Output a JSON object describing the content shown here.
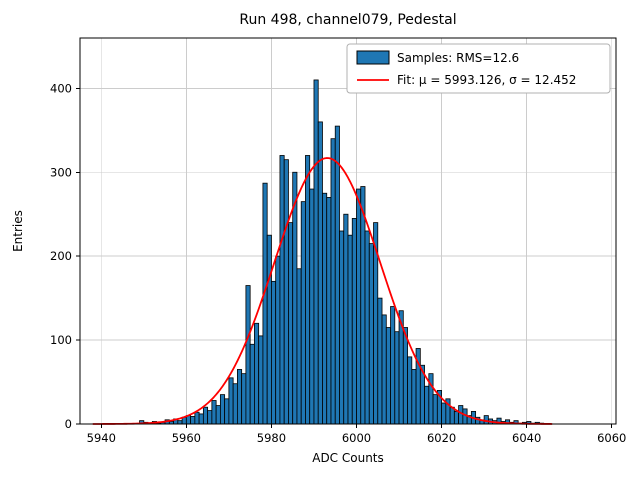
{
  "title": "Run 498, channel079, Pedestal",
  "chart_data": {
    "type": "bar",
    "subtype": "histogram-with-gaussian-fit",
    "title": "Run 498, channel079, Pedestal",
    "xlabel": "ADC Counts",
    "ylabel": "Entries",
    "xlim": [
      5935,
      6061
    ],
    "ylim": [
      0,
      460
    ],
    "xticks": [
      5940,
      5960,
      5980,
      6000,
      6020,
      6040,
      6060
    ],
    "yticks": [
      0,
      100,
      200,
      300,
      400
    ],
    "grid": true,
    "legend_position": "upper right",
    "colors": {
      "bar_fill": "#1f77b4",
      "bar_edge": "#000000",
      "fit_line": "#ff0000",
      "grid": "#cccccc",
      "legend_edge": "#b0b0b0"
    },
    "legend": [
      {
        "swatch": "patch",
        "label": "Samples: RMS=12.6"
      },
      {
        "swatch": "line",
        "label": "Fit: μ = 5993.126, σ = 12.452"
      }
    ],
    "histogram": {
      "bin_start": 5949,
      "bin_width": 1,
      "counts": [
        4,
        2,
        0,
        3,
        1,
        2,
        5,
        3,
        6,
        4,
        8,
        10,
        9,
        14,
        12,
        20,
        16,
        28,
        22,
        35,
        30,
        55,
        48,
        65,
        60,
        165,
        95,
        120,
        105,
        287,
        225,
        170,
        200,
        320,
        315,
        240,
        300,
        185,
        265,
        320,
        280,
        410,
        360,
        275,
        270,
        340,
        355,
        230,
        250,
        225,
        245,
        280,
        283,
        230,
        215,
        240,
        150,
        130,
        115,
        140,
        110,
        135,
        115,
        80,
        65,
        90,
        70,
        45,
        60,
        35,
        40,
        25,
        30,
        20,
        15,
        22,
        18,
        10,
        15,
        8,
        5,
        10,
        6,
        4,
        7,
        3,
        5,
        2,
        4,
        1,
        2,
        3,
        1,
        2,
        1
      ]
    },
    "fit": {
      "mu": 5993.126,
      "sigma": 12.452,
      "amplitude": 317,
      "x_range": [
        5938,
        6046
      ]
    }
  }
}
